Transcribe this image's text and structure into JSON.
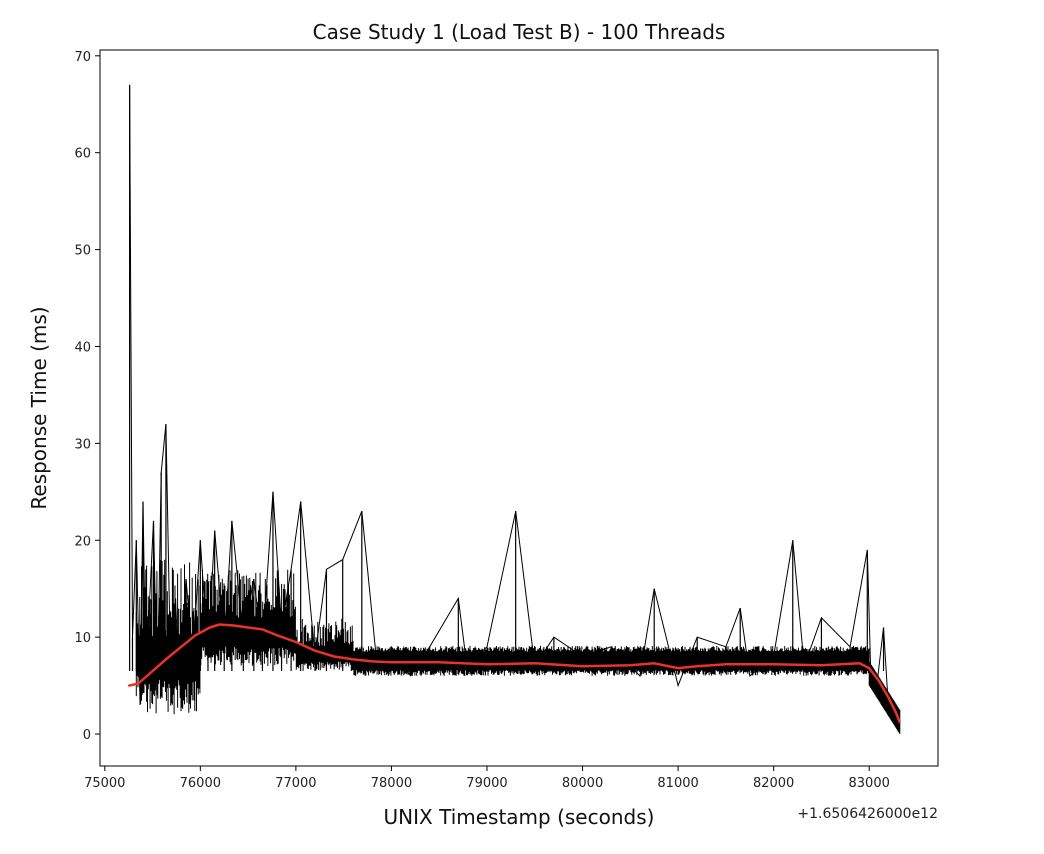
{
  "chart_data": {
    "type": "line",
    "title": "Case Study 1 (Load Test B) - 100 Threads",
    "xlabel": "UNIX Timestamp (seconds)",
    "ylabel": "Response Time (ms)",
    "x_offset_label": "+1.6506426000e12",
    "xlim": [
      74950,
      83720
    ],
    "ylim": [
      -3.3,
      70.6
    ],
    "x_ticks": [
      75000,
      76000,
      77000,
      78000,
      79000,
      80000,
      81000,
      82000,
      83000
    ],
    "y_ticks": [
      0,
      10,
      20,
      30,
      40,
      50,
      60,
      70
    ],
    "grid": false,
    "series": [
      {
        "style": "raw",
        "color": "#000000",
        "x": [
          75260,
          75290,
          75330,
          75370,
          75400,
          75430,
          75470,
          75510,
          75550,
          75590,
          75640,
          75690,
          75740,
          75780,
          75850,
          75920,
          76000,
          76080,
          76150,
          76250,
          76330,
          76450,
          76560,
          76650,
          76760,
          76850,
          76950,
          77050,
          77200,
          77320,
          77490,
          77690,
          77850,
          78000,
          78200,
          78400,
          78700,
          78790,
          79000,
          79300,
          79500,
          79700,
          80000,
          80300,
          80600,
          80750,
          81000,
          81200,
          81500,
          81650,
          81750,
          82000,
          82200,
          82320,
          82500,
          82800,
          82980,
          83020,
          83080,
          83150,
          83200,
          83270,
          83320
        ],
        "y": [
          67,
          10,
          20,
          3,
          24,
          5,
          14,
          22,
          4,
          27,
          32,
          6,
          14,
          5,
          16,
          8,
          20,
          8,
          21,
          9,
          22,
          10,
          16,
          9,
          25,
          11,
          17,
          24,
          8,
          17,
          18,
          23,
          7,
          9,
          6,
          9,
          14,
          7,
          9,
          23,
          7,
          10,
          8,
          9,
          6,
          15,
          5,
          10,
          9,
          13,
          6,
          8,
          20,
          7,
          12,
          9,
          19,
          5,
          5,
          11,
          3,
          2,
          1
        ]
      },
      {
        "style": "trend",
        "color": "#e8322a",
        "x": [
          75250,
          75350,
          75500,
          75650,
          75800,
          75950,
          76100,
          76200,
          76350,
          76500,
          76650,
          76800,
          77000,
          77200,
          77400,
          77600,
          77800,
          78000,
          78500,
          79000,
          79500,
          80000,
          80500,
          80750,
          81000,
          81200,
          81500,
          82000,
          82500,
          82700,
          82900,
          83000,
          83100,
          83200,
          83280,
          83320
        ],
        "y": [
          5,
          5.2,
          6.5,
          7.8,
          9.0,
          10.2,
          11.0,
          11.3,
          11.2,
          11.0,
          10.8,
          10.2,
          9.5,
          8.6,
          8.0,
          7.7,
          7.5,
          7.4,
          7.4,
          7.2,
          7.3,
          7.0,
          7.1,
          7.3,
          6.8,
          7.0,
          7.2,
          7.2,
          7.1,
          7.2,
          7.3,
          6.8,
          5.5,
          3.8,
          2.2,
          1.2
        ]
      }
    ]
  }
}
